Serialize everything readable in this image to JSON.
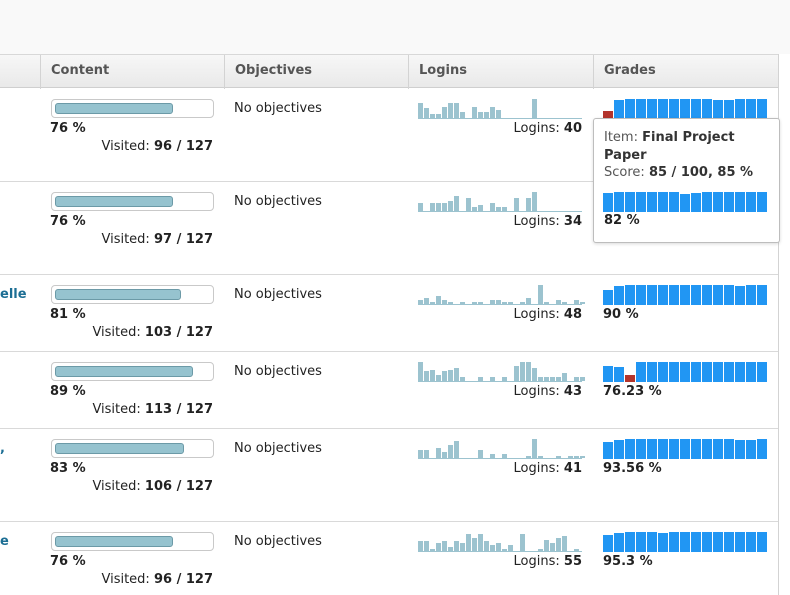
{
  "columns": {
    "content": "Content",
    "objectives": "Objectives",
    "logins": "Logins",
    "grades": "Grades"
  },
  "colors": {
    "login_bar": "#9cc3cf",
    "grade_bar": "#2196f3",
    "grade_bar_low": "#b3342c",
    "progress_fill": "#96c3cf",
    "name_link": "#1c6e94"
  },
  "rows": [
    {
      "name": "",
      "content_percent": 76,
      "content_percent_label": "76 %",
      "visited_prefix": "Visited:",
      "visited_value": "96 / 127",
      "objectives": "No objectives",
      "logins_prefix": "Logins:",
      "logins_value": "40",
      "login_activity": [
        8,
        5,
        2,
        2,
        6,
        8,
        8,
        3,
        0,
        6,
        3,
        3,
        6,
        4,
        0,
        0,
        0,
        0,
        0,
        10,
        0,
        0,
        0,
        0,
        0,
        0,
        0,
        0
      ],
      "grade_scores": [
        0.4,
        0.95,
        1,
        1,
        1,
        1,
        1,
        1,
        1,
        1,
        0.95,
        0.95,
        1,
        1,
        1
      ],
      "grade_low": [
        true,
        false,
        false,
        false,
        false,
        false,
        false,
        false,
        false,
        false,
        false,
        false,
        false,
        false,
        false
      ],
      "grade_percent": ""
    },
    {
      "name": "",
      "content_percent": 76,
      "content_percent_label": "76 %",
      "visited_prefix": "Visited:",
      "visited_value": "97 / 127",
      "objectives": "No objectives",
      "logins_prefix": "Logins:",
      "logins_value": "34",
      "login_activity": [
        4,
        0,
        4,
        4,
        4,
        5,
        8,
        0,
        7,
        2,
        3,
        0,
        4,
        2,
        2,
        0,
        7,
        0,
        7,
        10,
        0,
        0,
        0,
        0,
        0,
        0,
        0,
        0
      ],
      "grade_scores": [
        0.95,
        1,
        1,
        1,
        1,
        1,
        1,
        1,
        1,
        1,
        1,
        1,
        1,
        1,
        1
      ],
      "grade_low": [
        false,
        false,
        false,
        false,
        false,
        false,
        false,
        false,
        false,
        false,
        false,
        false,
        false,
        false,
        false
      ],
      "grade_percent": ""
    },
    {
      "name": "elle",
      "content_percent": 81,
      "content_percent_label": "81 %",
      "visited_prefix": "Visited:",
      "visited_value": "103 / 127",
      "objectives": "No objectives",
      "logins_prefix": "Logins:",
      "logins_value": "48",
      "login_activity": [
        2,
        3,
        1,
        4,
        2,
        1,
        0,
        1,
        0,
        1,
        1,
        0,
        2,
        2,
        1,
        1,
        0,
        1,
        3,
        0,
        10,
        1,
        0,
        2,
        1,
        0,
        2,
        1
      ],
      "grade_scores": [
        0.75,
        0.95,
        1,
        1,
        1,
        1,
        1,
        1,
        1,
        1,
        1,
        1,
        0.95,
        1,
        1
      ],
      "grade_low": [
        false,
        false,
        false,
        false,
        false,
        false,
        false,
        false,
        false,
        false,
        false,
        false,
        false,
        false,
        false
      ],
      "grade_percent": "90 %"
    },
    {
      "name": "",
      "content_percent": 89,
      "content_percent_label": "89 %",
      "visited_prefix": "Visited:",
      "visited_value": "113 / 127",
      "objectives": "No objectives",
      "logins_prefix": "Logins:",
      "logins_value": "43",
      "login_activity": [
        10,
        5,
        6,
        3,
        5,
        6,
        7,
        2,
        0,
        0,
        2,
        0,
        2,
        0,
        2,
        0,
        8,
        10,
        10,
        7,
        2,
        2,
        2,
        2,
        4,
        0,
        2,
        2
      ],
      "grade_scores": [
        0.8,
        0.75,
        0.35,
        1,
        1,
        1,
        1,
        1,
        1,
        1,
        1,
        1,
        1,
        1,
        1
      ],
      "grade_low": [
        false,
        false,
        true,
        false,
        false,
        false,
        false,
        false,
        false,
        false,
        false,
        false,
        false,
        false,
        false
      ],
      "grade_percent": "76.23 %"
    },
    {
      "name": ",",
      "content_percent": 83,
      "content_percent_label": "83 %",
      "visited_prefix": "Visited:",
      "visited_value": "106 / 127",
      "objectives": "No objectives",
      "logins_prefix": "Logins:",
      "logins_value": "41",
      "login_activity": [
        4,
        4,
        0,
        5,
        3,
        7,
        9,
        0,
        0,
        0,
        4,
        0,
        2,
        0,
        2,
        0,
        0,
        0,
        1,
        10,
        1,
        0,
        0,
        1,
        0,
        1,
        1,
        1
      ],
      "grade_scores": [
        0.85,
        0.95,
        1,
        1,
        1,
        1,
        1,
        1,
        1,
        1,
        1,
        1,
        0.95,
        0.95,
        1
      ],
      "grade_low": [
        false,
        false,
        false,
        false,
        false,
        false,
        false,
        false,
        false,
        false,
        false,
        false,
        false,
        false,
        false
      ],
      "grade_percent": "93.56 %"
    },
    {
      "name": "e",
      "content_percent": 76,
      "content_percent_label": "76 %",
      "visited_prefix": "Visited:",
      "visited_value": "96 / 127",
      "objectives": "No objectives",
      "logins_prefix": "Logins:",
      "logins_value": "55",
      "login_activity": [
        5,
        5,
        1,
        4,
        5,
        2,
        5,
        4,
        9,
        7,
        9,
        5,
        3,
        4,
        1,
        3,
        0,
        9,
        0,
        0,
        1,
        6,
        4,
        7,
        8,
        0,
        1,
        0
      ],
      "grade_scores": [
        0.85,
        0.95,
        1,
        1,
        1,
        0.95,
        1,
        1,
        1,
        1,
        1,
        1,
        1,
        1,
        1
      ],
      "grade_low": [
        false,
        false,
        false,
        false,
        false,
        false,
        false,
        false,
        false,
        false,
        false,
        false,
        false,
        false,
        false
      ],
      "grade_percent": "95.3 %"
    }
  ],
  "tooltip": {
    "item_prefix": "Item:",
    "item_name": "Final Project Paper",
    "score_prefix": "Score:",
    "score_value": "85 / 100, 85 %",
    "grade_percent": "82 %",
    "grade_scores": [
      0.95,
      1,
      1,
      1,
      1,
      1,
      1,
      0.9,
      0.95,
      1,
      1,
      1,
      1,
      1,
      1
    ]
  }
}
